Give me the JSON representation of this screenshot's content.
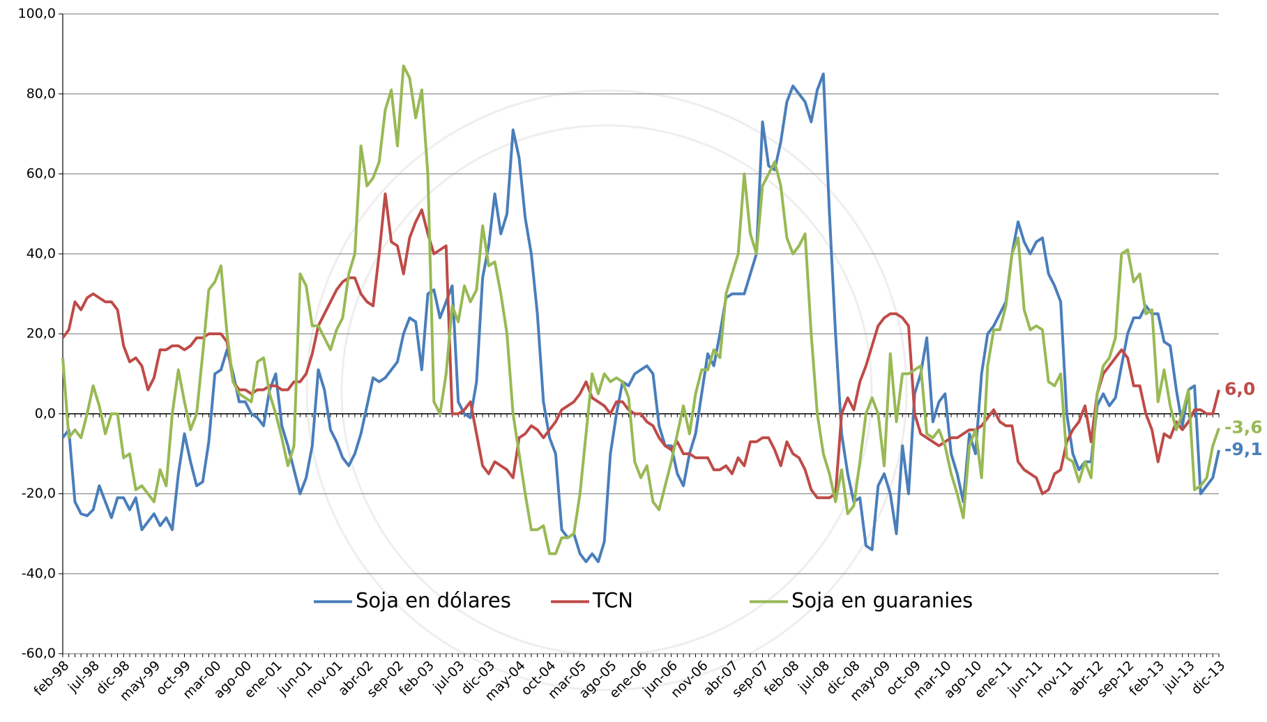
{
  "chart_data": {
    "type": "line",
    "categories": [
      "feb-98",
      null,
      null,
      null,
      null,
      "jul-98",
      null,
      null,
      null,
      null,
      "dic-98",
      null,
      null,
      null,
      null,
      "may-99",
      null,
      null,
      null,
      null,
      "oct-99",
      null,
      null,
      null,
      null,
      "mar-00",
      null,
      null,
      null,
      null,
      "ago-00",
      null,
      null,
      null,
      null,
      "ene-01",
      null,
      null,
      null,
      null,
      "jun-01",
      null,
      null,
      null,
      null,
      "nov-01",
      null,
      null,
      null,
      null,
      "abr-02",
      null,
      null,
      null,
      null,
      "sep-02",
      null,
      null,
      null,
      null,
      "feb-03",
      null,
      null,
      null,
      null,
      "jul-03",
      null,
      null,
      null,
      null,
      "dic-03",
      null,
      null,
      null,
      null,
      "may-04",
      null,
      null,
      null,
      null,
      "oct-04",
      null,
      null,
      null,
      null,
      "mar-05",
      null,
      null,
      null,
      null,
      "ago-05",
      null,
      null,
      null,
      null,
      "ene-06",
      null,
      null,
      null,
      null,
      "jun-06",
      null,
      null,
      null,
      null,
      "nov-06",
      null,
      null,
      null,
      null,
      "abr-07",
      null,
      null,
      null,
      null,
      "sep-07",
      null,
      null,
      null,
      null,
      "feb-08",
      null,
      null,
      null,
      null,
      "jul-08",
      null,
      null,
      null,
      null,
      "dic-08",
      null,
      null,
      null,
      null,
      "may-09",
      null,
      null,
      null,
      null,
      "oct-09",
      null,
      null,
      null,
      null,
      "mar-10",
      null,
      null,
      null,
      null,
      "ago-10",
      null,
      null,
      null,
      null,
      "ene-11",
      null,
      null,
      null,
      null,
      "jun-11",
      null,
      null,
      null,
      null,
      "nov-11",
      null,
      null,
      null,
      null,
      "abr-12",
      null,
      null,
      null,
      null,
      "sep-12",
      null,
      null,
      null,
      null,
      "feb-13",
      null,
      null,
      null,
      null,
      "jul-13",
      null,
      null,
      null,
      null,
      "dic-13"
    ],
    "series": [
      {
        "name": "Soja en dólares",
        "color": "#4a7ebb",
        "values": [
          -6,
          -4,
          -22,
          -25,
          -25.5,
          -24,
          -18,
          -22,
          -26,
          -21,
          -21,
          -24,
          -21,
          -29,
          -27,
          -25,
          -28,
          -26,
          -29,
          -15,
          -5,
          -12,
          -18,
          -17,
          -7,
          10,
          11,
          16,
          10,
          3,
          3,
          0,
          -1,
          -3,
          6,
          10,
          -3,
          -8,
          -14,
          -20,
          -16,
          -8,
          11,
          6,
          -4,
          -7,
          -11,
          -13,
          -10,
          -5,
          2,
          9,
          8,
          9,
          11,
          13,
          20,
          24,
          23,
          11,
          30,
          31,
          24,
          28,
          32,
          3,
          0,
          -1,
          8,
          34,
          42,
          55,
          45,
          50,
          71,
          64,
          49,
          40,
          25,
          3,
          -6,
          -10,
          -29,
          -31,
          -30,
          -35,
          -37,
          -35,
          -37,
          -32,
          -10,
          0,
          8,
          7,
          10,
          11,
          12,
          10,
          -3,
          -8,
          -8,
          -15,
          -18,
          -10,
          -5,
          5,
          15,
          12,
          20,
          29,
          30,
          30,
          30,
          35,
          40,
          73,
          62,
          61,
          68,
          78,
          82,
          80,
          78,
          73,
          81,
          85,
          50,
          20,
          -5,
          -15,
          -22,
          -21,
          -33,
          -34,
          -18,
          -15,
          -20,
          -30,
          -8,
          -20,
          5,
          10,
          19,
          -2,
          3,
          5,
          -10,
          -15,
          -22,
          -5,
          -10,
          10,
          20,
          22,
          25,
          28,
          40,
          48,
          43,
          40,
          43,
          44,
          35,
          32,
          28,
          0,
          -10,
          -14,
          -12,
          -12,
          2,
          5,
          2,
          4,
          12,
          20,
          24,
          24,
          27,
          25,
          25,
          18,
          17,
          6,
          -3,
          6,
          7,
          -20,
          -18,
          -16,
          -9.1
        ],
        "value_labels": {
          "190": "-9,1"
        }
      },
      {
        "name": "TCN",
        "color": "#be4b48",
        "values": [
          19,
          21,
          28,
          26,
          29,
          30,
          29,
          28,
          28,
          26,
          17,
          13,
          14,
          12,
          6,
          9,
          16,
          16,
          17,
          17,
          16,
          17,
          19,
          19,
          20,
          20,
          20,
          18,
          8,
          6,
          6,
          5,
          6,
          6,
          7,
          7,
          6,
          6,
          8,
          8,
          10,
          15,
          22,
          25,
          28,
          31,
          33,
          34,
          34,
          30,
          28,
          27,
          40,
          55,
          43,
          42,
          35,
          44,
          48,
          51,
          45,
          40,
          41,
          42,
          0,
          0,
          1,
          3,
          -5,
          -13,
          -15,
          -12,
          -13,
          -14,
          -16,
          -6,
          -5,
          -3,
          -4,
          -6,
          -4,
          -2,
          1,
          2,
          3,
          5,
          8,
          4,
          3,
          2,
          0,
          3,
          3,
          1,
          0,
          0,
          -2,
          -3,
          -6,
          -8,
          -9,
          -7,
          -10,
          -10,
          -11,
          -11,
          -11,
          -14,
          -14,
          -13,
          -15,
          -11,
          -13,
          -7,
          -7,
          -6,
          -6,
          -9,
          -13,
          -7,
          -10,
          -11,
          -14,
          -19,
          -21,
          -21,
          -21,
          -20,
          0,
          4,
          1,
          8,
          12,
          17,
          22,
          24,
          25,
          25,
          24,
          22,
          0,
          -5,
          -6,
          -7,
          -8,
          -7,
          -6,
          -6,
          -5,
          -4,
          -4,
          -3,
          -1,
          1,
          -2,
          -3,
          -3,
          -12,
          -14,
          -15,
          -16,
          -20,
          -19,
          -15,
          -14,
          -7,
          -4,
          -2,
          2,
          -7,
          5,
          10,
          12,
          14,
          16,
          14,
          7,
          7,
          0,
          -4,
          -12,
          -5,
          -6,
          -2,
          -4,
          -2,
          1,
          1,
          0,
          0,
          6.0
        ],
        "value_labels": {
          "190": "6,0"
        }
      },
      {
        "name": "Soja en guaranies",
        "color": "#98b954",
        "values": [
          14,
          -6,
          -4,
          -6,
          0,
          7,
          2,
          -5,
          0,
          0,
          -11,
          -10,
          -19,
          -18,
          -20,
          -22,
          -14,
          -18,
          0,
          11,
          3,
          -4,
          0,
          15,
          31,
          33,
          37,
          20,
          8,
          5,
          4,
          3,
          13,
          14,
          5,
          0,
          -6,
          -13,
          -8,
          35,
          32,
          22,
          22,
          19,
          16,
          21,
          24,
          35,
          40,
          67,
          57,
          59,
          63,
          76,
          81,
          67,
          87,
          84,
          74,
          81,
          60,
          3,
          0,
          10,
          27,
          23,
          32,
          28,
          31,
          47,
          37,
          38,
          30,
          20,
          0,
          -10,
          -20,
          -29,
          -29,
          -28,
          -35,
          -35,
          -31,
          -31,
          -30,
          -20,
          -5,
          10,
          5,
          10,
          8,
          9,
          8,
          4,
          -12,
          -16,
          -13,
          -22,
          -24,
          -18,
          -12,
          -5,
          2,
          -5,
          5,
          11,
          11,
          16,
          14,
          30,
          35,
          40,
          60,
          45,
          40,
          57,
          60,
          63,
          57,
          44,
          40,
          42,
          45,
          20,
          0,
          -10,
          -15,
          -22,
          -14,
          -25,
          -23,
          -12,
          0,
          4,
          0,
          -13,
          15,
          -2,
          10,
          10,
          11,
          12,
          -5,
          -6,
          -4,
          -8,
          -15,
          -20,
          -26,
          -8,
          -4,
          -16,
          12,
          21,
          21,
          27,
          40,
          44,
          26,
          21,
          22,
          21,
          8,
          7,
          10,
          -11,
          -12,
          -17,
          -12,
          -16,
          5,
          12,
          14,
          19,
          40,
          41,
          33,
          35,
          25,
          26,
          3,
          11,
          2,
          -4,
          0,
          6,
          -19,
          -18,
          -16,
          -8,
          -3.6
        ],
        "value_labels": {
          "190": "-3,6"
        }
      }
    ],
    "ylim": [
      -60,
      100
    ],
    "yticks": [
      {
        "value": -60,
        "label": "-60,0"
      },
      {
        "value": -40,
        "label": "-40,0"
      },
      {
        "value": -20,
        "label": "-20,0"
      },
      {
        "value": 0,
        "label": "0,0"
      },
      {
        "value": 20,
        "label": "20,0"
      },
      {
        "value": 40,
        "label": "40,0"
      },
      {
        "value": 60,
        "label": "60,0"
      },
      {
        "value": 80,
        "label": "80,0"
      },
      {
        "value": 100,
        "label": "100,0"
      }
    ],
    "grid": true,
    "legend": "bottom"
  }
}
